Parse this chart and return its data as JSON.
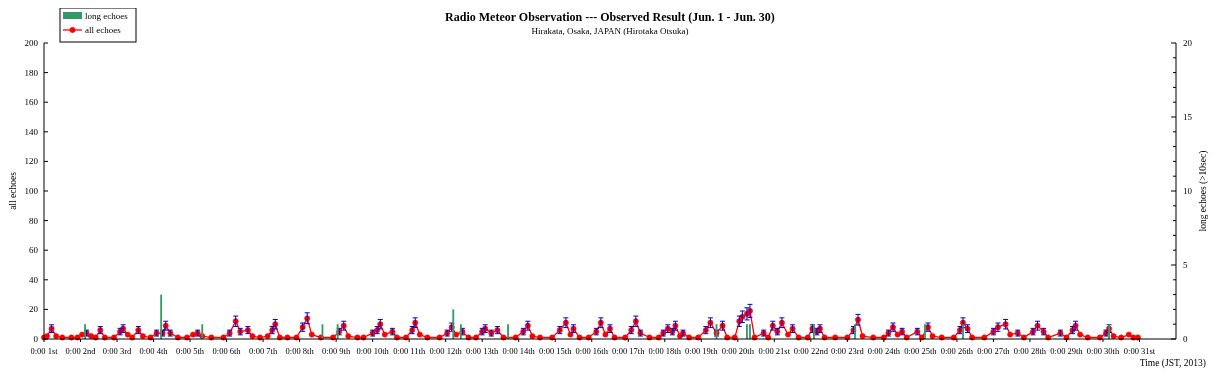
{
  "chart_data": {
    "type": "line",
    "title": "Radio Meteor Observation --- Observed Result (Jun. 1 - Jun. 30)",
    "subtitle": "Hirakata, Osaka, JAPAN (Hirotaka Otsuka)",
    "xlabel": "Time (JST, 2013)",
    "ylabel": "all echoes",
    "y2label": "long echoes (>10sec)",
    "xlim": [
      "2013-06-01T00:00",
      "2013-07-02T00:00"
    ],
    "xticks": [
      {
        "value": "2013-06-01T00:00",
        "label": "0:00 1st"
      },
      {
        "value": "2013-06-02T00:00",
        "label": "0:00 2nd"
      },
      {
        "value": "2013-06-03T00:00",
        "label": "0:00 3rd"
      },
      {
        "value": "2013-06-04T00:00",
        "label": "0:00 4th"
      },
      {
        "value": "2013-06-05T00:00",
        "label": "0:00 5th"
      },
      {
        "value": "2013-06-06T00:00",
        "label": "0:00 6th"
      },
      {
        "value": "2013-06-07T00:00",
        "label": "0:00 7th"
      },
      {
        "value": "2013-06-08T00:00",
        "label": "0:00 8th"
      },
      {
        "value": "2013-06-09T00:00",
        "label": "0:00 9th"
      },
      {
        "value": "2013-06-10T00:00",
        "label": "0:00 10th"
      },
      {
        "value": "2013-06-11T00:00",
        "label": "0:00 11th"
      },
      {
        "value": "2013-06-12T00:00",
        "label": "0:00 12th"
      },
      {
        "value": "2013-06-13T00:00",
        "label": "0:00 13th"
      },
      {
        "value": "2013-06-14T00:00",
        "label": "0:00 14th"
      },
      {
        "value": "2013-06-15T00:00",
        "label": "0:00 15th"
      },
      {
        "value": "2013-06-16T00:00",
        "label": "0:00 16th"
      },
      {
        "value": "2013-06-17T00:00",
        "label": "0:00 17th"
      },
      {
        "value": "2013-06-18T00:00",
        "label": "0:00 18th"
      },
      {
        "value": "2013-06-19T00:00",
        "label": "0:00 19th"
      },
      {
        "value": "2013-06-20T00:00",
        "label": "0:00 20th"
      },
      {
        "value": "2013-06-21T00:00",
        "label": "0:00 21st"
      },
      {
        "value": "2013-06-22T00:00",
        "label": "0:00 22nd"
      },
      {
        "value": "2013-06-23T00:00",
        "label": "0:00 23rd"
      },
      {
        "value": "2013-06-24T00:00",
        "label": "0:00 24th"
      },
      {
        "value": "2013-06-25T00:00",
        "label": "0:00 25th"
      },
      {
        "value": "2013-06-26T00:00",
        "label": "0:00 26th"
      },
      {
        "value": "2013-06-27T00:00",
        "label": "0:00 27th"
      },
      {
        "value": "2013-06-28T00:00",
        "label": "0:00 28th"
      },
      {
        "value": "2013-06-29T00:00",
        "label": "0:00 29th"
      },
      {
        "value": "2013-06-30T00:00",
        "label": "0:00 30th"
      },
      {
        "value": "2013-07-01T00:00",
        "label": "0:00 31st"
      }
    ],
    "ylim": [
      0,
      200
    ],
    "yticks": [
      0,
      20,
      40,
      60,
      80,
      100,
      120,
      140,
      160,
      180,
      200
    ],
    "y2lim": [
      0,
      20
    ],
    "y2ticks": [
      0,
      {
        "value": 1,
        "label": null
      },
      {
        "value": 2,
        "label": null
      },
      {
        "value": 3,
        "label": null
      },
      {
        "value": 4,
        "label": null
      },
      5,
      {
        "value": 6,
        "label": null
      },
      {
        "value": 7,
        "label": null
      },
      {
        "value": 8,
        "label": null
      },
      {
        "value": 9,
        "label": null
      },
      10,
      {
        "value": 11,
        "label": null
      },
      {
        "value": 12,
        "label": null
      },
      {
        "value": 13,
        "label": null
      },
      {
        "value": 14,
        "label": null
      },
      15,
      {
        "value": 16,
        "label": null
      },
      {
        "value": 17,
        "label": null
      },
      {
        "value": 18,
        "label": null
      },
      {
        "value": 19,
        "label": null
      },
      20
    ],
    "grid": false,
    "legend": "top left",
    "marker": "circle",
    "line_style": "solid",
    "series": [
      {
        "name": "long echoes",
        "type": "bar",
        "axis": "y2",
        "color": "#339966",
        "x": [
          "2013-06-02T03:00",
          "2013-06-04T05:00",
          "2013-06-05T08:00",
          "2013-06-08T15:00",
          "2013-06-09T01:00",
          "2013-06-12T05:00",
          "2013-06-12T10:00",
          "2013-06-13T17:00",
          "2013-06-19T10:00",
          "2013-06-20T06:00",
          "2013-06-20T08:00",
          "2013-06-22T02:00",
          "2013-06-23T05:00",
          "2013-06-25T03:00",
          "2013-06-26T04:00",
          "2013-06-30T04:00"
        ],
        "values": [
          1,
          3,
          1,
          1,
          1,
          2,
          1,
          1,
          1,
          1,
          1,
          1,
          1,
          1,
          1,
          1
        ]
      },
      {
        "name": "all echoes",
        "color": "#ff0000",
        "x": [
          "2013-06-01T00:00",
          "2013-06-01T02:00",
          "2013-06-01T05:00",
          "2013-06-01T08:00",
          "2013-06-01T12:00",
          "2013-06-01T18:00",
          "2013-06-01T22:00",
          "2013-06-02T01:00",
          "2013-06-02T04:00",
          "2013-06-02T07:00",
          "2013-06-02T10:00",
          "2013-06-02T13:00",
          "2013-06-02T16:00",
          "2013-06-02T22:00",
          "2013-06-03T02:00",
          "2013-06-03T04:00",
          "2013-06-03T07:00",
          "2013-06-03T10:00",
          "2013-06-03T14:00",
          "2013-06-03T17:00",
          "2013-06-03T22:00",
          "2013-06-04T02:00",
          "2013-06-04T06:00",
          "2013-06-04T08:00",
          "2013-06-04T11:00",
          "2013-06-04T16:00",
          "2013-06-04T22:00",
          "2013-06-05T02:00",
          "2013-06-05T05:00",
          "2013-06-05T08:00",
          "2013-06-05T14:00",
          "2013-06-05T22:00",
          "2013-06-06T02:00",
          "2013-06-06T06:00",
          "2013-06-06T09:00",
          "2013-06-06T14:00",
          "2013-06-06T17:00",
          "2013-06-06T22:00",
          "2013-06-07T03:00",
          "2013-06-07T06:00",
          "2013-06-07T08:00",
          "2013-06-07T11:00",
          "2013-06-07T16:00",
          "2013-06-07T22:00",
          "2013-06-08T02:00",
          "2013-06-08T05:00",
          "2013-06-08T08:00",
          "2013-06-08T14:00",
          "2013-06-08T22:00",
          "2013-06-09T02:00",
          "2013-06-09T05:00",
          "2013-06-09T08:00",
          "2013-06-09T14:00",
          "2013-06-09T18:00",
          "2013-06-10T00:00",
          "2013-06-10T03:00",
          "2013-06-10T05:00",
          "2013-06-10T08:00",
          "2013-06-10T13:00",
          "2013-06-10T16:00",
          "2013-06-10T22:00",
          "2013-06-11T02:00",
          "2013-06-11T04:00",
          "2013-06-11T07:00",
          "2013-06-11T12:00",
          "2013-06-11T20:00",
          "2013-06-12T01:00",
          "2013-06-12T04:00",
          "2013-06-12T07:00",
          "2013-06-12T11:00",
          "2013-06-12T15:00",
          "2013-06-12T20:00",
          "2013-06-13T00:00",
          "2013-06-13T02:00",
          "2013-06-13T06:00",
          "2013-06-13T10:00",
          "2013-06-13T14:00",
          "2013-06-13T22:00",
          "2013-06-14T03:00",
          "2013-06-14T06:00",
          "2013-06-14T09:00",
          "2013-06-14T14:00",
          "2013-06-14T22:00",
          "2013-06-15T03:00",
          "2013-06-15T07:00",
          "2013-06-15T10:00",
          "2013-06-15T12:00",
          "2013-06-15T16:00",
          "2013-06-15T22:00",
          "2013-06-16T03:00",
          "2013-06-16T06:00",
          "2013-06-16T09:00",
          "2013-06-16T12:00",
          "2013-06-16T15:00",
          "2013-06-16T22:00",
          "2013-06-17T02:00",
          "2013-06-17T05:00",
          "2013-06-17T08:00",
          "2013-06-17T14:00",
          "2013-06-17T20:00",
          "2013-06-17T23:00",
          "2013-06-18T02:00",
          "2013-06-18T05:00",
          "2013-06-18T07:00",
          "2013-06-18T10:00",
          "2013-06-18T12:00",
          "2013-06-18T16:00",
          "2013-06-18T22:00",
          "2013-06-19T03:00",
          "2013-06-19T06:00",
          "2013-06-19T10:00",
          "2013-06-19T14:00",
          "2013-06-19T17:00",
          "2013-06-19T22:00",
          "2013-06-20T01:00",
          "2013-06-20T03:00",
          "2013-06-20T06:00",
          "2013-06-20T08:00",
          "2013-06-20T11:00",
          "2013-06-20T17:00",
          "2013-06-20T20:00",
          "2013-06-20T23:00",
          "2013-06-21T02:00",
          "2013-06-21T05:00",
          "2013-06-21T09:00",
          "2013-06-21T12:00",
          "2013-06-21T16:00",
          "2013-06-21T22:00",
          "2013-06-22T01:00",
          "2013-06-22T04:00",
          "2013-06-22T06:00",
          "2013-06-22T09:00",
          "2013-06-22T16:00",
          "2013-06-23T00:00",
          "2013-06-23T04:00",
          "2013-06-23T07:00",
          "2013-06-23T10:00",
          "2013-06-23T17:00",
          "2013-06-24T00:00",
          "2013-06-24T03:00",
          "2013-06-24T06:00",
          "2013-06-24T09:00",
          "2013-06-24T12:00",
          "2013-06-24T15:00",
          "2013-06-24T22:00",
          "2013-06-25T01:00",
          "2013-06-25T05:00",
          "2013-06-25T08:00",
          "2013-06-25T14:00",
          "2013-06-25T22:00",
          "2013-06-26T02:00",
          "2013-06-26T04:00",
          "2013-06-26T07:00",
          "2013-06-26T10:00",
          "2013-06-26T18:00",
          "2013-06-27T00:00",
          "2013-06-27T03:00",
          "2013-06-27T08:00",
          "2013-06-27T11:00",
          "2013-06-27T16:00",
          "2013-06-27T20:00",
          "2013-06-28T02:00",
          "2013-06-28T05:00",
          "2013-06-28T09:00",
          "2013-06-28T12:00",
          "2013-06-28T20:00",
          "2013-06-29T00:00",
          "2013-06-29T04:00",
          "2013-06-29T06:00",
          "2013-06-29T09:00",
          "2013-06-29T14:00",
          "2013-06-29T22:00",
          "2013-06-30T02:00",
          "2013-06-30T04:00",
          "2013-06-30T07:00",
          "2013-06-30T12:00",
          "2013-06-30T17:00",
          "2013-06-30T20:00",
          "2013-06-30T23:00"
        ],
        "values": [
          1,
          2,
          7,
          2,
          1,
          1,
          1,
          3,
          4,
          2,
          1,
          6,
          1,
          1,
          5,
          7,
          3,
          1,
          6,
          2,
          1,
          4,
          4,
          9,
          4,
          1,
          1,
          3,
          4,
          2,
          1,
          1,
          4,
          12,
          5,
          6,
          2,
          1,
          2,
          6,
          10,
          1,
          1,
          1,
          8,
          14,
          3,
          1,
          1,
          5,
          9,
          2,
          1,
          1,
          4,
          6,
          10,
          3,
          5,
          1,
          1,
          6,
          11,
          3,
          1,
          1,
          4,
          8,
          3,
          5,
          1,
          1,
          5,
          7,
          4,
          6,
          1,
          1,
          5,
          9,
          2,
          1,
          1,
          6,
          11,
          3,
          7,
          1,
          1,
          5,
          11,
          3,
          7,
          1,
          1,
          6,
          12,
          4,
          1,
          1,
          4,
          7,
          5,
          9,
          2,
          4,
          1,
          1,
          6,
          11,
          4,
          9,
          1,
          1,
          12,
          15,
          17,
          19,
          1,
          4,
          1,
          9,
          5,
          11,
          3,
          7,
          1,
          1,
          7,
          5,
          7,
          1,
          1,
          1,
          6,
          13,
          2,
          1,
          1,
          4,
          8,
          3,
          5,
          1,
          5,
          1,
          8,
          2,
          1,
          1,
          6,
          11,
          7,
          1,
          1,
          5,
          8,
          10,
          3,
          4,
          1,
          5,
          9,
          5,
          1,
          4,
          1,
          6,
          9,
          3,
          1,
          1,
          4,
          7,
          2,
          1,
          3,
          1,
          1
        ],
        "errors": [
          null,
          null,
          2.6,
          null,
          null,
          null,
          null,
          null,
          2,
          null,
          null,
          2.4,
          null,
          null,
          2.2,
          2.6,
          null,
          null,
          2.4,
          null,
          null,
          2,
          2,
          3,
          2,
          null,
          null,
          null,
          2,
          null,
          null,
          null,
          2,
          3.5,
          2.2,
          2.4,
          null,
          null,
          null,
          2.4,
          3.2,
          null,
          null,
          null,
          2.8,
          3.7,
          null,
          null,
          null,
          2.2,
          3,
          null,
          null,
          null,
          2,
          2.4,
          3.2,
          null,
          2.2,
          null,
          null,
          2.4,
          3.3,
          null,
          null,
          null,
          2,
          2.8,
          null,
          2.2,
          null,
          null,
          2.2,
          2.6,
          2,
          2.4,
          null,
          null,
          2.2,
          3,
          null,
          null,
          null,
          2.4,
          3.3,
          null,
          2.6,
          null,
          null,
          2.2,
          3.3,
          null,
          2.6,
          null,
          null,
          2.4,
          3.5,
          2,
          null,
          null,
          2,
          2.6,
          2.2,
          3,
          null,
          2,
          null,
          null,
          2.4,
          3.3,
          2,
          3,
          null,
          null,
          3.5,
          3.9,
          4.1,
          4.4,
          null,
          2,
          null,
          3,
          2.2,
          3.3,
          null,
          2.6,
          null,
          null,
          2.6,
          2.2,
          2.6,
          null,
          null,
          null,
          2.4,
          3.6,
          null,
          null,
          null,
          2,
          2.8,
          null,
          2.2,
          null,
          2.2,
          null,
          2.8,
          null,
          null,
          null,
          2.4,
          3.3,
          2.6,
          null,
          null,
          2.2,
          2.8,
          3.2,
          null,
          2,
          null,
          2.2,
          3,
          2.2,
          null,
          2,
          null,
          2.4,
          3,
          null,
          null,
          null,
          2,
          2.6,
          null,
          null,
          null,
          null,
          null
        ]
      }
    ]
  }
}
